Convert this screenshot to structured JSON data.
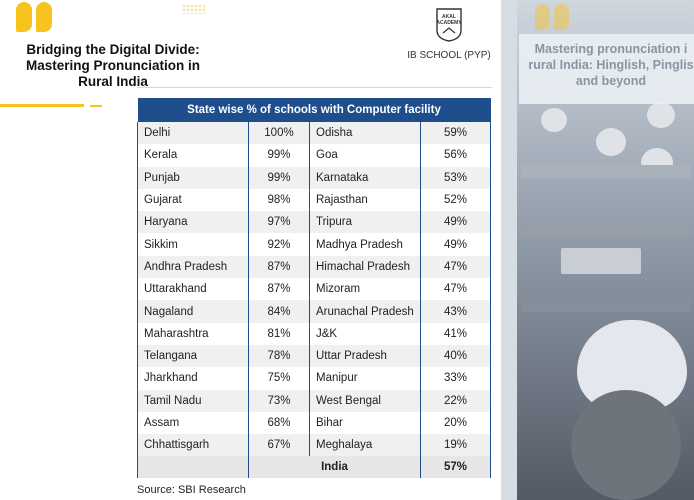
{
  "header": {
    "title_lines": [
      "Bridging the Digital Divide:",
      "Mastering Pronunciation in",
      "Rural India"
    ],
    "logo_text_lines": [
      "AKAL",
      "ACADEMY"
    ],
    "school": "IB SCHOOL (PYP)"
  },
  "table": {
    "title": "State wise % of schools with Computer facility",
    "rows": [
      [
        "Delhi",
        "100%",
        "Odisha",
        "59%"
      ],
      [
        "Kerala",
        "99%",
        "Goa",
        "56%"
      ],
      [
        "Punjab",
        "99%",
        "Karnataka",
        "53%"
      ],
      [
        "Gujarat",
        "98%",
        "Rajasthan",
        "52%"
      ],
      [
        "Haryana",
        "97%",
        "Tripura",
        "49%"
      ],
      [
        "Sikkim",
        "92%",
        "Madhya Pradesh",
        "49%"
      ],
      [
        "Andhra Pradesh",
        "87%",
        "Himachal Pradesh",
        "47%"
      ],
      [
        "Uttarakhand",
        "87%",
        "Mizoram",
        "47%"
      ],
      [
        "Nagaland",
        "84%",
        "Arunachal Pradesh",
        "43%"
      ],
      [
        "Maharashtra",
        "81%",
        "J&K",
        "41%"
      ],
      [
        "Telangana",
        "78%",
        "Uttar Pradesh",
        "40%"
      ],
      [
        "Jharkhand",
        "75%",
        "Manipur",
        "33%"
      ],
      [
        "Tamil Nadu",
        "73%",
        "West Bengal",
        "22%"
      ],
      [
        "Assam",
        "68%",
        "Bihar",
        "20%"
      ],
      [
        "Chhattisgarh",
        "67%",
        "Meghalaya",
        "19%"
      ]
    ],
    "total_label": "India",
    "total_value": "57%"
  },
  "source": "Source: SBI Research",
  "side_panel": {
    "text_lines": [
      "Mastering pronunciation i",
      "rural India: Hinglish, Pinglis",
      "and beyond"
    ]
  },
  "colors": {
    "accent": "#f7c31f",
    "table_header": "#1f4e8c"
  }
}
